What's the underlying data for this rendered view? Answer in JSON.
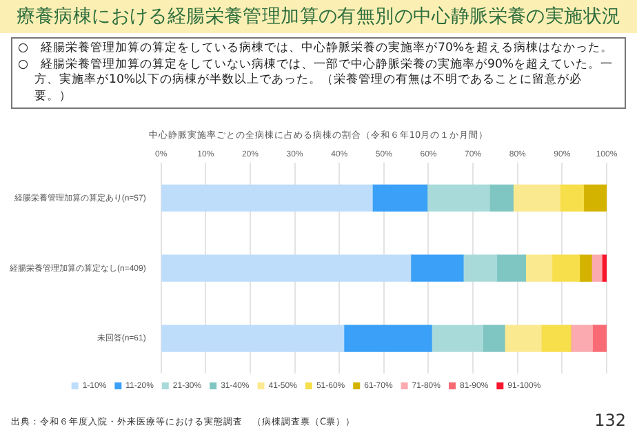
{
  "chart_data": {
    "type": "bar",
    "orientation": "horizontal",
    "stacked": true,
    "title": "療養病棟における経腸栄養管理加算の有無別の中心静脈栄養の実施状況",
    "subtitle": "中心静脈実施率ごとの全病棟に占める病棟の割合（令和６年10月の１か月間）",
    "annotations": [
      "○　経腸栄養管理加算の算定をしている病棟では、中心静脈栄養の実施率が70%を超える病棟はなかった。",
      "○　経腸栄養管理加算の算定をしていない病棟では、一部で中心静脈栄養の実施率が90%を超えていた。一方、実施率が10%以下の病棟が半数以上であった。（栄養管理の有無は不明であることに留意が必要。）",
      "出典：令和６年度入院・外来医療等における実態調査　（病棟調査票（C票））",
      "132"
    ],
    "categories": [
      "経腸栄養管理加算の算定あり(n=57)",
      "経腸栄養管理加算の算定なし(n=409)",
      "未回答(n=61)"
    ],
    "series": [
      {
        "name": "1-10%",
        "color": "#bdddfb",
        "values": [
          47.4,
          56.0,
          41.0
        ]
      },
      {
        "name": "11-20%",
        "color": "#3aa0f8",
        "values": [
          12.3,
          11.8,
          19.7
        ]
      },
      {
        "name": "21-30%",
        "color": "#a9dada",
        "values": [
          14.0,
          7.5,
          11.5
        ]
      },
      {
        "name": "31-40%",
        "color": "#7fc6c3",
        "values": [
          5.3,
          6.5,
          4.9
        ]
      },
      {
        "name": "41-50%",
        "color": "#fbe98f",
        "values": [
          10.5,
          5.9,
          8.2
        ]
      },
      {
        "name": "51-60%",
        "color": "#f7de4b",
        "values": [
          5.3,
          6.2,
          6.6
        ]
      },
      {
        "name": "61-70%",
        "color": "#d4b300",
        "values": [
          5.3,
          2.7,
          0
        ]
      },
      {
        "name": "71-80%",
        "color": "#fbaaaf",
        "values": [
          0,
          2.3,
          4.9
        ]
      },
      {
        "name": "81-90%",
        "color": "#f86b74",
        "values": [
          0,
          0,
          3.3
        ]
      },
      {
        "name": "91-100%",
        "color": "#f7162c",
        "values": [
          0,
          1.1,
          0
        ]
      }
    ],
    "xlim": [
      0,
      100
    ],
    "xticks": [
      {
        "value": 0,
        "label": "0%"
      },
      {
        "value": 10,
        "label": "10%"
      },
      {
        "value": 20,
        "label": "20%"
      },
      {
        "value": 30,
        "label": "30%"
      },
      {
        "value": 40,
        "label": "40%"
      },
      {
        "value": 50,
        "label": "50%"
      },
      {
        "value": 60,
        "label": "60%"
      },
      {
        "value": 70,
        "label": "70%"
      },
      {
        "value": 80,
        "label": "80%"
      },
      {
        "value": 90,
        "label": "90%"
      },
      {
        "value": 100,
        "label": "100%"
      }
    ],
    "grid": "x",
    "legend": "bottom"
  }
}
